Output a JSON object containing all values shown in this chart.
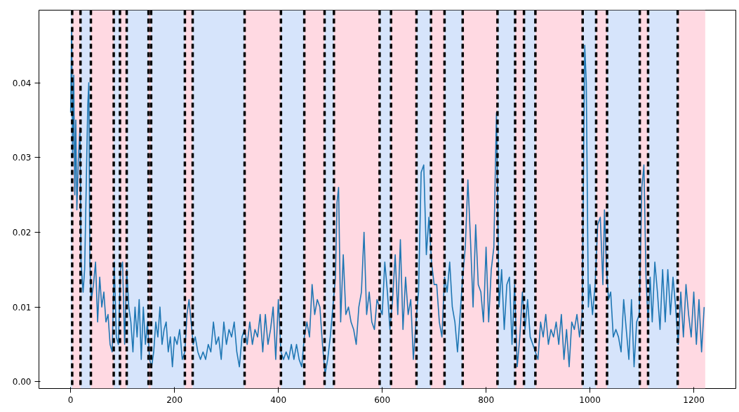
{
  "chart_data": {
    "type": "line",
    "x": [
      0,
      2,
      4,
      6,
      8,
      10,
      12,
      15,
      18,
      20,
      24,
      27,
      30,
      33,
      35,
      37,
      40,
      44,
      48,
      52,
      56,
      60,
      64,
      68,
      72,
      76,
      80,
      84,
      88,
      92,
      96,
      100,
      104,
      108,
      112,
      116,
      120,
      124,
      128,
      132,
      136,
      140,
      144,
      148,
      152,
      156,
      160,
      164,
      168,
      172,
      176,
      180,
      184,
      188,
      192,
      196,
      200,
      205,
      210,
      215,
      220,
      224,
      228,
      232,
      236,
      240,
      245,
      250,
      255,
      260,
      265,
      270,
      275,
      280,
      285,
      290,
      295,
      300,
      305,
      310,
      315,
      320,
      325,
      330,
      335,
      340,
      345,
      350,
      355,
      360,
      365,
      370,
      375,
      380,
      385,
      390,
      395,
      400,
      405,
      410,
      415,
      420,
      425,
      430,
      435,
      440,
      445,
      450,
      455,
      460,
      465,
      470,
      475,
      480,
      485,
      490,
      495,
      500,
      505,
      510,
      513,
      516,
      520,
      525,
      530,
      535,
      540,
      545,
      550,
      555,
      560,
      565,
      570,
      575,
      580,
      585,
      590,
      595,
      600,
      605,
      610,
      615,
      620,
      625,
      630,
      635,
      640,
      645,
      650,
      655,
      660,
      665,
      670,
      675,
      680,
      685,
      690,
      695,
      700,
      705,
      710,
      715,
      720,
      725,
      730,
      735,
      740,
      745,
      750,
      755,
      760,
      765,
      770,
      775,
      780,
      785,
      790,
      795,
      800,
      805,
      810,
      815,
      820,
      825,
      830,
      835,
      840,
      845,
      850,
      855,
      860,
      865,
      870,
      875,
      880,
      885,
      890,
      895,
      900,
      905,
      910,
      915,
      920,
      925,
      930,
      935,
      940,
      945,
      950,
      955,
      960,
      965,
      970,
      975,
      980,
      985,
      990,
      993,
      997,
      1000,
      1005,
      1010,
      1015,
      1020,
      1025,
      1028,
      1032,
      1036,
      1040,
      1045,
      1050,
      1055,
      1060,
      1065,
      1070,
      1075,
      1080,
      1085,
      1090,
      1095,
      1100,
      1104,
      1108,
      1112,
      1116,
      1120,
      1125,
      1130,
      1135,
      1140,
      1145,
      1150,
      1155,
      1160,
      1165,
      1170,
      1175,
      1180,
      1185,
      1190,
      1195,
      1200,
      1205,
      1210,
      1215,
      1220
    ],
    "series": [
      {
        "color": "#1f77b4",
        "values": [
          0.036,
          0.047,
          0.03,
          0.041,
          0.025,
          0.035,
          0.023,
          0.03,
          0.034,
          0.016,
          0.012,
          0.015,
          0.026,
          0.037,
          0.04,
          0.016,
          0.011,
          0.013,
          0.016,
          0.008,
          0.014,
          0.01,
          0.012,
          0.008,
          0.009,
          0.005,
          0.004,
          0.016,
          0.006,
          0.005,
          0.015,
          0.016,
          0.005,
          0.015,
          0.01,
          0.008,
          0.004,
          0.01,
          0.006,
          0.011,
          0.003,
          0.01,
          0.005,
          0.008,
          0.003,
          0.002,
          0.004,
          0.008,
          0.006,
          0.01,
          0.005,
          0.007,
          0.008,
          0.004,
          0.006,
          0.002,
          0.006,
          0.005,
          0.007,
          0.003,
          0.004,
          0.009,
          0.011,
          0.008,
          0.005,
          0.006,
          0.004,
          0.003,
          0.004,
          0.003,
          0.005,
          0.004,
          0.008,
          0.005,
          0.006,
          0.003,
          0.008,
          0.005,
          0.007,
          0.006,
          0.008,
          0.004,
          0.002,
          0.006,
          0.007,
          0.005,
          0.008,
          0.005,
          0.007,
          0.006,
          0.009,
          0.004,
          0.009,
          0.005,
          0.007,
          0.01,
          0.003,
          0.011,
          0.004,
          0.003,
          0.004,
          0.003,
          0.005,
          0.003,
          0.005,
          0.003,
          0.002,
          0.006,
          0.008,
          0.006,
          0.013,
          0.009,
          0.011,
          0.01,
          0.005,
          0.001,
          0.003,
          0.006,
          0.01,
          0.014,
          0.024,
          0.026,
          0.008,
          0.017,
          0.009,
          0.01,
          0.008,
          0.007,
          0.005,
          0.01,
          0.012,
          0.02,
          0.009,
          0.012,
          0.008,
          0.007,
          0.011,
          0.01,
          0.009,
          0.016,
          0.012,
          0.007,
          0.011,
          0.017,
          0.009,
          0.019,
          0.007,
          0.014,
          0.009,
          0.011,
          0.003,
          0.008,
          0.012,
          0.028,
          0.029,
          0.017,
          0.022,
          0.016,
          0.013,
          0.013,
          0.008,
          0.006,
          0.014,
          0.012,
          0.016,
          0.01,
          0.008,
          0.004,
          0.009,
          0.014,
          0.018,
          0.027,
          0.019,
          0.01,
          0.021,
          0.013,
          0.012,
          0.008,
          0.018,
          0.008,
          0.015,
          0.018,
          0.036,
          0.01,
          0.015,
          0.007,
          0.013,
          0.014,
          0.005,
          0.013,
          0.002,
          0.006,
          0.012,
          0.007,
          0.011,
          0.006,
          0.005,
          0.004,
          0.003,
          0.008,
          0.006,
          0.009,
          0.005,
          0.007,
          0.006,
          0.008,
          0.005,
          0.009,
          0.003,
          0.007,
          0.002,
          0.008,
          0.007,
          0.009,
          0.006,
          0.009,
          0.045,
          0.04,
          0.01,
          0.013,
          0.009,
          0.013,
          0.021,
          0.022,
          0.013,
          0.023,
          0.015,
          0.011,
          0.012,
          0.006,
          0.007,
          0.006,
          0.004,
          0.011,
          0.007,
          0.003,
          0.011,
          0.002,
          0.008,
          0.009,
          0.026,
          0.029,
          0.014,
          0.008,
          0.014,
          0.008,
          0.016,
          0.012,
          0.007,
          0.015,
          0.008,
          0.015,
          0.009,
          0.014,
          0.01,
          0.005,
          0.012,
          0.006,
          0.013,
          0.009,
          0.006,
          0.012,
          0.005,
          0.011,
          0.004,
          0.01
        ]
      }
    ],
    "xlim": [
      -61,
      1281
    ],
    "ylim": [
      -0.0009,
      0.0497
    ],
    "xticks": [
      0,
      200,
      400,
      600,
      800,
      1000,
      1200
    ],
    "yticks": [
      {
        "value": 0,
        "label": "0.00"
      },
      {
        "value": 0.01,
        "label": "0.01"
      },
      {
        "value": 0.02,
        "label": "0.02"
      },
      {
        "value": 0.03,
        "label": "0.03"
      },
      {
        "value": 0.04,
        "label": "0.04"
      }
    ],
    "grid": false,
    "line_style": "solid",
    "marker": "none",
    "ref_lines": [
      {
        "axis": "x",
        "value": 3,
        "color": "#000000",
        "line_style": "dashed"
      },
      {
        "axis": "x",
        "value": 19,
        "color": "#000000",
        "line_style": "dashed"
      },
      {
        "axis": "x",
        "value": 39,
        "color": "#000000",
        "line_style": "dashed"
      },
      {
        "axis": "x",
        "value": 83,
        "color": "#000000",
        "line_style": "dashed"
      },
      {
        "axis": "x",
        "value": 95,
        "color": "#000000",
        "line_style": "dashed"
      },
      {
        "axis": "x",
        "value": 108,
        "color": "#000000",
        "line_style": "dashed"
      },
      {
        "axis": "x",
        "value": 150,
        "color": "#000000",
        "line_style": "dashed"
      },
      {
        "axis": "x",
        "value": 155,
        "color": "#000000",
        "line_style": "dashed"
      },
      {
        "axis": "x",
        "value": 220,
        "color": "#000000",
        "line_style": "dashed"
      },
      {
        "axis": "x",
        "value": 235,
        "color": "#000000",
        "line_style": "dashed"
      },
      {
        "axis": "x",
        "value": 335,
        "color": "#000000",
        "line_style": "dashed"
      },
      {
        "axis": "x",
        "value": 405,
        "color": "#000000",
        "line_style": "dashed"
      },
      {
        "axis": "x",
        "value": 450,
        "color": "#000000",
        "line_style": "dashed"
      },
      {
        "axis": "x",
        "value": 489,
        "color": "#000000",
        "line_style": "dashed"
      },
      {
        "axis": "x",
        "value": 507,
        "color": "#000000",
        "line_style": "dashed"
      },
      {
        "axis": "x",
        "value": 595,
        "color": "#000000",
        "line_style": "dashed"
      },
      {
        "axis": "x",
        "value": 617,
        "color": "#000000",
        "line_style": "dashed"
      },
      {
        "axis": "x",
        "value": 666,
        "color": "#000000",
        "line_style": "dashed"
      },
      {
        "axis": "x",
        "value": 694,
        "color": "#000000",
        "line_style": "dashed"
      },
      {
        "axis": "x",
        "value": 720,
        "color": "#000000",
        "line_style": "dashed"
      },
      {
        "axis": "x",
        "value": 755,
        "color": "#000000",
        "line_style": "dashed"
      },
      {
        "axis": "x",
        "value": 822,
        "color": "#000000",
        "line_style": "dashed"
      },
      {
        "axis": "x",
        "value": 856,
        "color": "#000000",
        "line_style": "dashed"
      },
      {
        "axis": "x",
        "value": 873,
        "color": "#000000",
        "line_style": "dashed"
      },
      {
        "axis": "x",
        "value": 895,
        "color": "#000000",
        "line_style": "dashed"
      },
      {
        "axis": "x",
        "value": 986,
        "color": "#000000",
        "line_style": "dashed"
      },
      {
        "axis": "x",
        "value": 1012,
        "color": "#000000",
        "line_style": "dashed"
      },
      {
        "axis": "x",
        "value": 1033,
        "color": "#000000",
        "line_style": "dashed"
      },
      {
        "axis": "x",
        "value": 1096,
        "color": "#000000",
        "line_style": "dashed"
      },
      {
        "axis": "x",
        "value": 1112,
        "color": "#000000",
        "line_style": "dashed"
      },
      {
        "axis": "x",
        "value": 1169,
        "color": "#000000",
        "line_style": "dashed"
      }
    ],
    "bands": [
      {
        "axis": "x",
        "from": 0,
        "to": 3,
        "color": "#d6e4fb"
      },
      {
        "axis": "x",
        "from": 3,
        "to": 19,
        "color": "#ffd9e2"
      },
      {
        "axis": "x",
        "from": 19,
        "to": 39,
        "color": "#d6e4fb"
      },
      {
        "axis": "x",
        "from": 39,
        "to": 83,
        "color": "#ffd9e2"
      },
      {
        "axis": "x",
        "from": 83,
        "to": 95,
        "color": "#d6e4fb"
      },
      {
        "axis": "x",
        "from": 95,
        "to": 108,
        "color": "#ffd9e2"
      },
      {
        "axis": "x",
        "from": 108,
        "to": 150,
        "color": "#d6e4fb"
      },
      {
        "axis": "x",
        "from": 150,
        "to": 155,
        "color": "#ffd9e2"
      },
      {
        "axis": "x",
        "from": 155,
        "to": 220,
        "color": "#d6e4fb"
      },
      {
        "axis": "x",
        "from": 220,
        "to": 235,
        "color": "#ffd9e2"
      },
      {
        "axis": "x",
        "from": 235,
        "to": 335,
        "color": "#d6e4fb"
      },
      {
        "axis": "x",
        "from": 335,
        "to": 405,
        "color": "#ffd9e2"
      },
      {
        "axis": "x",
        "from": 405,
        "to": 450,
        "color": "#d6e4fb"
      },
      {
        "axis": "x",
        "from": 450,
        "to": 489,
        "color": "#ffd9e2"
      },
      {
        "axis": "x",
        "from": 489,
        "to": 507,
        "color": "#d6e4fb"
      },
      {
        "axis": "x",
        "from": 507,
        "to": 595,
        "color": "#ffd9e2"
      },
      {
        "axis": "x",
        "from": 595,
        "to": 617,
        "color": "#d6e4fb"
      },
      {
        "axis": "x",
        "from": 617,
        "to": 666,
        "color": "#ffd9e2"
      },
      {
        "axis": "x",
        "from": 666,
        "to": 694,
        "color": "#d6e4fb"
      },
      {
        "axis": "x",
        "from": 694,
        "to": 720,
        "color": "#ffd9e2"
      },
      {
        "axis": "x",
        "from": 720,
        "to": 755,
        "color": "#d6e4fb"
      },
      {
        "axis": "x",
        "from": 755,
        "to": 822,
        "color": "#ffd9e2"
      },
      {
        "axis": "x",
        "from": 822,
        "to": 856,
        "color": "#d6e4fb"
      },
      {
        "axis": "x",
        "from": 856,
        "to": 873,
        "color": "#ffd9e2"
      },
      {
        "axis": "x",
        "from": 873,
        "to": 895,
        "color": "#d6e4fb"
      },
      {
        "axis": "x",
        "from": 895,
        "to": 986,
        "color": "#ffd9e2"
      },
      {
        "axis": "x",
        "from": 986,
        "to": 1012,
        "color": "#d6e4fb"
      },
      {
        "axis": "x",
        "from": 1012,
        "to": 1033,
        "color": "#ffd9e2"
      },
      {
        "axis": "x",
        "from": 1033,
        "to": 1096,
        "color": "#d6e4fb"
      },
      {
        "axis": "x",
        "from": 1096,
        "to": 1112,
        "color": "#ffd9e2"
      },
      {
        "axis": "x",
        "from": 1112,
        "to": 1169,
        "color": "#d6e4fb"
      },
      {
        "axis": "x",
        "from": 1169,
        "to": 1222,
        "color": "#ffd9e2"
      }
    ]
  }
}
